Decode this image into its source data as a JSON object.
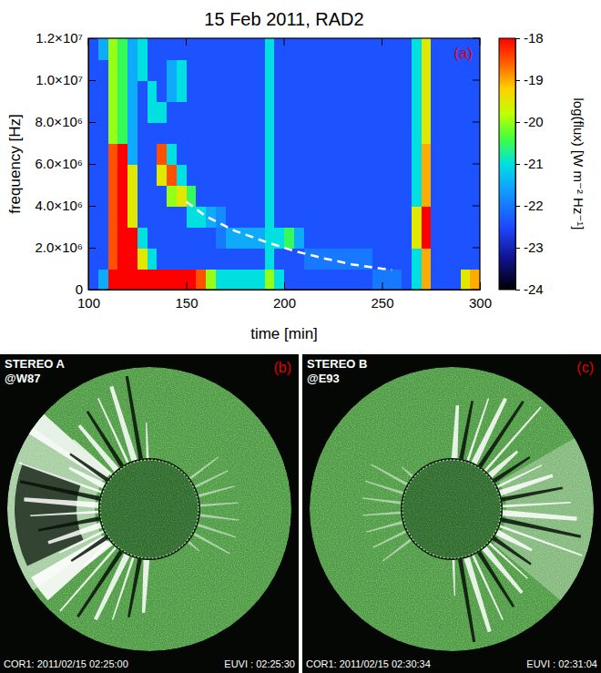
{
  "chart_data": {
    "type": "heatmap",
    "title": "15 Feb 2011, RAD2",
    "panel_label": "(a)",
    "x_label": "time [min]",
    "y_label": "frequency [Hz]",
    "xlim": [
      100,
      300
    ],
    "xticks": [
      100,
      150,
      200,
      250,
      300
    ],
    "ylim": [
      0,
      12000000
    ],
    "yticks": [
      0,
      {
        "value": 2000000,
        "label": "2.0×10⁶"
      },
      {
        "value": 4000000,
        "label": "4.0×10⁶"
      },
      {
        "value": 6000000,
        "label": "6.0×10⁶"
      },
      {
        "value": 8000000,
        "label": "8.0×10⁶"
      },
      {
        "value": 10000000,
        "label": "1.0×10⁷"
      },
      {
        "value": 12000000,
        "label": "1.2×10⁷"
      }
    ],
    "colorbar": {
      "label": "log(flux) [W m⁻² Hz⁻¹]",
      "range": [
        -24,
        -18
      ],
      "ticks": [
        -18,
        -19,
        -20,
        -21,
        -22,
        -23,
        -24
      ]
    },
    "heatmap": {
      "x_bins": [
        100,
        105,
        110,
        115,
        120,
        125,
        130,
        135,
        140,
        145,
        150,
        155,
        160,
        165,
        170,
        175,
        180,
        185,
        190,
        195,
        200,
        205,
        210,
        215,
        220,
        225,
        230,
        235,
        240,
        245,
        250,
        255,
        260,
        265,
        270,
        275,
        280,
        285,
        290,
        295,
        300
      ],
      "y_bins": [
        0,
        1000000,
        2000000,
        3000000,
        4000000,
        5000000,
        6000000,
        7000000,
        8000000,
        9000000,
        10000000,
        11000000,
        12000000
      ],
      "values": [
        [
          -22.4,
          -21.5,
          -18,
          -18,
          -18,
          -18,
          -18,
          -18,
          -18,
          -18,
          -18,
          -18.5,
          -20,
          -21,
          -21,
          -21,
          -21,
          -21,
          -20,
          -21,
          -22.4,
          -22.4,
          -22.4,
          -22.4,
          -22.4,
          -22.4,
          -22.4,
          -22.4,
          -22.4,
          -22,
          -22,
          -22,
          -22.4,
          -21,
          -19,
          -22.4,
          -22.4,
          -22.4,
          -19.5,
          -19
        ],
        [
          -22.4,
          -22.4,
          -18.5,
          -18,
          -18,
          -19.5,
          -21,
          -22.4,
          -22.4,
          -22.4,
          -22.4,
          -22.4,
          -22.4,
          -22.4,
          -22.4,
          -22.4,
          -22.4,
          -22.4,
          -21,
          -22.4,
          -22.4,
          -22.4,
          -22,
          -22,
          -22,
          -22,
          -22,
          -22,
          -22,
          -22.4,
          -22.4,
          -22.4,
          -22.4,
          -21,
          -19,
          -22.4,
          -22.4,
          -22.4,
          -22.4,
          -22.4
        ],
        [
          -22.4,
          -22.4,
          -18.5,
          -18,
          -18,
          -21,
          -22.4,
          -22.4,
          -22.4,
          -22.4,
          -22.4,
          -22.4,
          -22.4,
          -22,
          -21.5,
          -21.5,
          -21.5,
          -21.5,
          -21,
          -21,
          -20.5,
          -21.5,
          -22.4,
          -22.4,
          -22.4,
          -22.4,
          -22.4,
          -22.4,
          -22.4,
          -22.4,
          -22.4,
          -22.4,
          -22.4,
          -19.5,
          -18,
          -22.4,
          -22.4,
          -22.4,
          -22.4,
          -22.4
        ],
        [
          -22.4,
          -22.4,
          -18.5,
          -18,
          -19.5,
          -22.4,
          -22.4,
          -22.4,
          -22.4,
          -22.4,
          -21,
          -21,
          -21.5,
          -21.8,
          -22.4,
          -22.4,
          -22.4,
          -22.4,
          -21,
          -22.4,
          -22.4,
          -22.4,
          -22.4,
          -22.4,
          -22.4,
          -22.4,
          -22.4,
          -22.4,
          -22.4,
          -22.4,
          -22.4,
          -22.4,
          -22.4,
          -19.5,
          -18,
          -22.4,
          -22.4,
          -22.4,
          -22.4,
          -22.4
        ],
        [
          -22.4,
          -22.4,
          -18.5,
          -18,
          -19.5,
          -22.4,
          -22.4,
          -22.4,
          -20,
          -19.5,
          -20.5,
          -22.4,
          -22.4,
          -22.4,
          -22.4,
          -22.4,
          -22.4,
          -22.4,
          -21,
          -22.4,
          -22.4,
          -22.4,
          -22.4,
          -22.4,
          -22.4,
          -22.4,
          -22.4,
          -22.4,
          -22.4,
          -22.4,
          -22.4,
          -22.4,
          -22.4,
          -21,
          -19,
          -22.4,
          -22.4,
          -22.4,
          -22.4,
          -22.4
        ],
        [
          -22.4,
          -22.4,
          -18.5,
          -18,
          -19.5,
          -22.4,
          -22.4,
          -19.5,
          -18.5,
          -21,
          -22.4,
          -22.4,
          -22.4,
          -22.4,
          -22.4,
          -22.4,
          -22.4,
          -22.4,
          -21,
          -22.4,
          -22.4,
          -22.4,
          -22.4,
          -22.4,
          -22.4,
          -22.4,
          -22.4,
          -22.4,
          -22.4,
          -22.4,
          -22.4,
          -22.4,
          -22.4,
          -21,
          -19,
          -22.4,
          -22.4,
          -22.4,
          -22.4,
          -22.4
        ],
        [
          -22.4,
          -22.4,
          -18.5,
          -18,
          -21.5,
          -22.4,
          -22.4,
          -18.5,
          -21,
          -22.4,
          -22.4,
          -22.4,
          -22.4,
          -22.4,
          -22.4,
          -22.4,
          -22.4,
          -22.4,
          -21,
          -22.4,
          -22.4,
          -22.4,
          -22.4,
          -22.4,
          -22.4,
          -22.4,
          -22.4,
          -22.4,
          -22.4,
          -22.4,
          -22.4,
          -22.4,
          -22.4,
          -21,
          -19,
          -22.4,
          -22.4,
          -22.4,
          -22.4,
          -22.4
        ],
        [
          -22.4,
          -22.4,
          -20,
          -20.5,
          -21.5,
          -22.4,
          -22.4,
          -22.4,
          -22.4,
          -22.4,
          -22.4,
          -22.4,
          -22.4,
          -22.4,
          -22.4,
          -22.4,
          -22.4,
          -22.4,
          -21,
          -22.4,
          -22.4,
          -22.4,
          -22.4,
          -22.4,
          -22.4,
          -22.4,
          -22.4,
          -22.4,
          -22.4,
          -22.4,
          -22.4,
          -22.4,
          -22.4,
          -21,
          -19.5,
          -22.4,
          -22.4,
          -22.4,
          -22.4,
          -22.4
        ],
        [
          -22.4,
          -22.4,
          -20,
          -20.5,
          -21.5,
          -22.4,
          -21,
          -21,
          -22.4,
          -22.4,
          -22.4,
          -22.4,
          -22.4,
          -22.4,
          -22.4,
          -22.4,
          -22.4,
          -22.4,
          -21,
          -22.4,
          -22.4,
          -22.4,
          -22.4,
          -22.4,
          -22.4,
          -22.4,
          -22.4,
          -22.4,
          -22.4,
          -22.4,
          -22.4,
          -22.4,
          -22.4,
          -21,
          -19.5,
          -22.4,
          -22.4,
          -22.4,
          -22.4,
          -22.4
        ],
        [
          -22.4,
          -22.4,
          -20,
          -20.5,
          -21.5,
          -22.4,
          -21,
          -22.4,
          -21.5,
          -21,
          -22.4,
          -22.4,
          -22.4,
          -22.4,
          -22.4,
          -22.4,
          -22.4,
          -22.4,
          -21,
          -22.4,
          -22.4,
          -22.4,
          -22.4,
          -22.4,
          -22.4,
          -22.4,
          -22.4,
          -22.4,
          -22.4,
          -22.4,
          -22.4,
          -22.4,
          -22.4,
          -21,
          -19.5,
          -22.4,
          -22.4,
          -22.4,
          -22.4,
          -22.4
        ],
        [
          -22.4,
          -22.4,
          -20,
          -20.5,
          -21.5,
          -21,
          -22.4,
          -22.4,
          -21.5,
          -21,
          -22.4,
          -22.4,
          -22.4,
          -22.4,
          -22.4,
          -22.4,
          -22.4,
          -22.4,
          -21,
          -22.4,
          -22.4,
          -22.4,
          -22.4,
          -22.4,
          -22.4,
          -22.4,
          -22.4,
          -22.4,
          -22.4,
          -22.4,
          -22.4,
          -22.4,
          -22.4,
          -21,
          -19.5,
          -22.4,
          -22.4,
          -22.4,
          -22.4,
          -22.4
        ],
        [
          -22.4,
          -21.5,
          -20,
          -20.5,
          -21.5,
          -21,
          -22.4,
          -22.4,
          -22.4,
          -22.4,
          -22.4,
          -22.4,
          -22.4,
          -22.4,
          -22.4,
          -22.4,
          -22.4,
          -22.4,
          -21,
          -22.4,
          -22.4,
          -22.4,
          -22.4,
          -22.4,
          -22.4,
          -22.4,
          -22.4,
          -22.4,
          -22.4,
          -22.4,
          -22.4,
          -22.4,
          -22.4,
          -21,
          -19.5,
          -22.4,
          -22.4,
          -22.4,
          -22.4,
          -22.4
        ]
      ]
    },
    "fit_line": {
      "x": [
        150,
        160,
        175,
        190,
        205,
        220,
        235,
        250,
        255
      ],
      "y": [
        4200000,
        3500000,
        2800000,
        2300000,
        1850000,
        1500000,
        1200000,
        1000000,
        950000
      ],
      "color": "#ffffff",
      "line_style": "dashed"
    }
  },
  "images": [
    {
      "label": "(b)",
      "title": "STEREO A",
      "viewpoint": "@W87",
      "cor1_time": "COR1: 2011/02/15 02:25:00",
      "euvi_time": "EUVI : 02:25:30"
    },
    {
      "label": "(c)",
      "title": "STEREO B",
      "viewpoint": "@E93",
      "cor1_time": "COR1: 2011/02/15 02:30:34",
      "euvi_time": "EUVI : 02:31:04"
    }
  ]
}
